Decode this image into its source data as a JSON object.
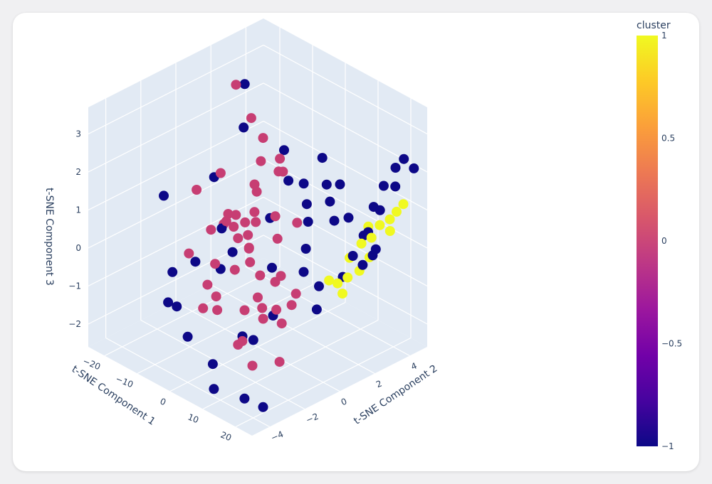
{
  "chart_data": {
    "type": "scatter3d",
    "x_axis": {
      "title": "t-SNE Component 1",
      "ticks": [
        "−20",
        "−10",
        "0",
        "10",
        "20"
      ]
    },
    "y_axis": {
      "title": "t-SNE Component 2",
      "ticks": [
        "−4",
        "−2",
        "0",
        "2",
        "4"
      ]
    },
    "z_axis": {
      "title": "t-SNE Component 3",
      "ticks": [
        "−2",
        "−1",
        "0",
        "1",
        "2",
        "3"
      ]
    },
    "colorbar": {
      "title": "cluster",
      "ticks": [
        "1",
        "0.5",
        "0",
        "−0.5",
        "−1"
      ],
      "range": [
        -1,
        1
      ],
      "colorscale": [
        "#0d0887",
        "#46039f",
        "#7201a8",
        "#9c179e",
        "#bd3786",
        "#d8576b",
        "#ed7953",
        "#fb9f3a",
        "#fdca26",
        "#f0f921"
      ]
    },
    "cluster_colors": {
      "-1": "#0d0887",
      "0": "#c73e73",
      "1": "#f0f921"
    },
    "series": [
      {
        "cluster": 0,
        "points": [
          [
            -12.0,
            1.0,
            3.5
          ],
          [
            -10.0,
            1.5,
            2.6
          ],
          [
            -8.0,
            1.8,
            2.1
          ],
          [
            -6.0,
            1.3,
            1.7
          ],
          [
            -14.0,
            0.5,
            1.2
          ],
          [
            -16.0,
            -0.5,
            0.9
          ],
          [
            -5.0,
            2.2,
            1.6
          ],
          [
            -3.0,
            2.0,
            1.4
          ],
          [
            -4.0,
            -0.5,
            0.8
          ],
          [
            -2.0,
            -1.0,
            0.7
          ],
          [
            -1.0,
            0.0,
            0.9
          ],
          [
            0.0,
            1.0,
            0.6
          ],
          [
            1.0,
            -0.3,
            0.8
          ],
          [
            2.0,
            -1.5,
            0.7
          ],
          [
            -8.0,
            -0.3,
            0.4
          ],
          [
            -6.0,
            0.4,
            0.3
          ],
          [
            -10.0,
            -0.8,
            0.2
          ],
          [
            -12.0,
            0.3,
            0.0
          ],
          [
            -3.0,
            0.0,
            0.2
          ],
          [
            0.0,
            -0.5,
            0.1
          ],
          [
            3.0,
            -1.0,
            0.0
          ],
          [
            5.0,
            -0.8,
            -0.3
          ],
          [
            6.0,
            0.2,
            -0.5
          ],
          [
            8.0,
            -0.5,
            -0.4
          ],
          [
            -5.0,
            -1.5,
            -0.3
          ],
          [
            -8.0,
            1.0,
            -0.6
          ],
          [
            -2.0,
            -2.0,
            -0.9
          ],
          [
            1.0,
            -2.5,
            -1.0
          ],
          [
            4.0,
            -1.5,
            -1.1
          ],
          [
            7.0,
            -1.0,
            -1.3
          ],
          [
            -10.0,
            -1.0,
            -1.2
          ],
          [
            -6.0,
            -2.0,
            -1.4
          ],
          [
            0.0,
            0.0,
            -1.3
          ],
          [
            3.0,
            0.5,
            -1.6
          ],
          [
            6.0,
            -2.0,
            -1.7
          ],
          [
            10.0,
            -0.5,
            -1.4
          ],
          [
            -4.0,
            1.0,
            -2.0
          ],
          [
            2.0,
            -1.5,
            -2.1
          ],
          [
            8.0,
            -1.8,
            -2.3
          ],
          [
            12.0,
            -1.0,
            -2.2
          ],
          [
            -7.0,
            0.0,
            -0.9
          ],
          [
            -9.0,
            1.5,
            0.9
          ],
          [
            -7.0,
            2.5,
            1.1
          ],
          [
            4.0,
            1.5,
            0.5
          ],
          [
            -1.0,
            -1.5,
            1.2
          ],
          [
            -11.0,
            2.0,
            0.5
          ],
          [
            9.0,
            0.5,
            -0.9
          ],
          [
            -13.0,
            -1.5,
            -0.4
          ],
          [
            -2.0,
            1.5,
            -0.2
          ],
          [
            5.0,
            1.0,
            -1.5
          ]
        ]
      },
      {
        "cluster": -1,
        "points": [
          [
            -12.0,
            1.5,
            3.4
          ],
          [
            -18.0,
            -2.0,
            1.0
          ],
          [
            -15.0,
            2.0,
            2.0
          ],
          [
            -8.0,
            3.0,
            1.5
          ],
          [
            -4.0,
            2.5,
            1.0
          ],
          [
            -2.0,
            3.0,
            0.9
          ],
          [
            0.0,
            2.8,
            0.5
          ],
          [
            2.0,
            2.5,
            0.2
          ],
          [
            4.0,
            2.0,
            -0.3
          ],
          [
            6.0,
            1.5,
            -0.7
          ],
          [
            8.0,
            2.0,
            -1.1
          ],
          [
            10.0,
            1.5,
            -1.5
          ],
          [
            -10.0,
            -3.0,
            -0.4
          ],
          [
            -6.0,
            -3.5,
            -1.0
          ],
          [
            0.0,
            -4.0,
            -1.4
          ],
          [
            5.0,
            -3.5,
            -2.0
          ],
          [
            8.0,
            -4.0,
            -2.4
          ],
          [
            12.0,
            -3.0,
            -2.7
          ],
          [
            15.0,
            -2.5,
            -2.9
          ],
          [
            -14.0,
            -2.5,
            -1.5
          ],
          [
            -3.0,
            -3.0,
            0.2
          ],
          [
            3.0,
            -2.0,
            0.5
          ],
          [
            -16.0,
            0.5,
            1.0
          ],
          [
            -6.0,
            -1.0,
            -0.6
          ],
          [
            -1.0,
            1.0,
            -0.8
          ],
          [
            6.0,
            3.0,
            0.8
          ],
          [
            9.0,
            3.5,
            0.4
          ],
          [
            12.0,
            3.8,
            0.0
          ],
          [
            14.0,
            4.0,
            0.8
          ],
          [
            16.0,
            4.2,
            1.4
          ],
          [
            18.0,
            4.5,
            1.9
          ],
          [
            20.0,
            4.6,
            2.2
          ],
          [
            19.0,
            4.3,
            1.5
          ],
          [
            17.0,
            3.8,
            0.9
          ],
          [
            22.0,
            4.8,
            2.0
          ],
          [
            15.0,
            3.5,
            0.3
          ],
          [
            13.0,
            3.0,
            -0.3
          ],
          [
            11.0,
            2.8,
            -0.9
          ],
          [
            16.0,
            3.0,
            -0.4
          ],
          [
            18.0,
            3.2,
            -0.1
          ],
          [
            20.0,
            3.0,
            0.2
          ],
          [
            10.0,
            2.5,
            0.6
          ],
          [
            8.0,
            3.2,
            1.3
          ],
          [
            5.0,
            3.0,
            1.2
          ],
          [
            -2.0,
            -0.5,
            -2.3
          ],
          [
            2.0,
            0.5,
            -1.8
          ],
          [
            -8.0,
            2.2,
            -0.1
          ],
          [
            4.0,
            -1.0,
            -2.0
          ],
          [
            1.0,
            3.5,
            1.6
          ],
          [
            -11.0,
            0.0,
            0.0
          ]
        ]
      },
      {
        "cluster": 1,
        "points": [
          [
            12.0,
            3.0,
            -0.4
          ],
          [
            14.0,
            3.3,
            0.0
          ],
          [
            16.0,
            3.5,
            0.2
          ],
          [
            18.0,
            3.6,
            0.6
          ],
          [
            20.0,
            3.8,
            0.8
          ],
          [
            21.0,
            4.0,
            1.0
          ],
          [
            19.0,
            4.0,
            0.4
          ],
          [
            13.0,
            2.7,
            -0.8
          ],
          [
            15.0,
            3.0,
            -0.6
          ],
          [
            17.0,
            3.2,
            -0.2
          ],
          [
            11.0,
            2.5,
            -1.0
          ],
          [
            10.0,
            2.2,
            -0.9
          ],
          [
            22.0,
            4.2,
            1.2
          ],
          [
            14.5,
            3.6,
            0.4
          ],
          [
            12.5,
            2.5,
            -1.2
          ]
        ]
      }
    ]
  }
}
